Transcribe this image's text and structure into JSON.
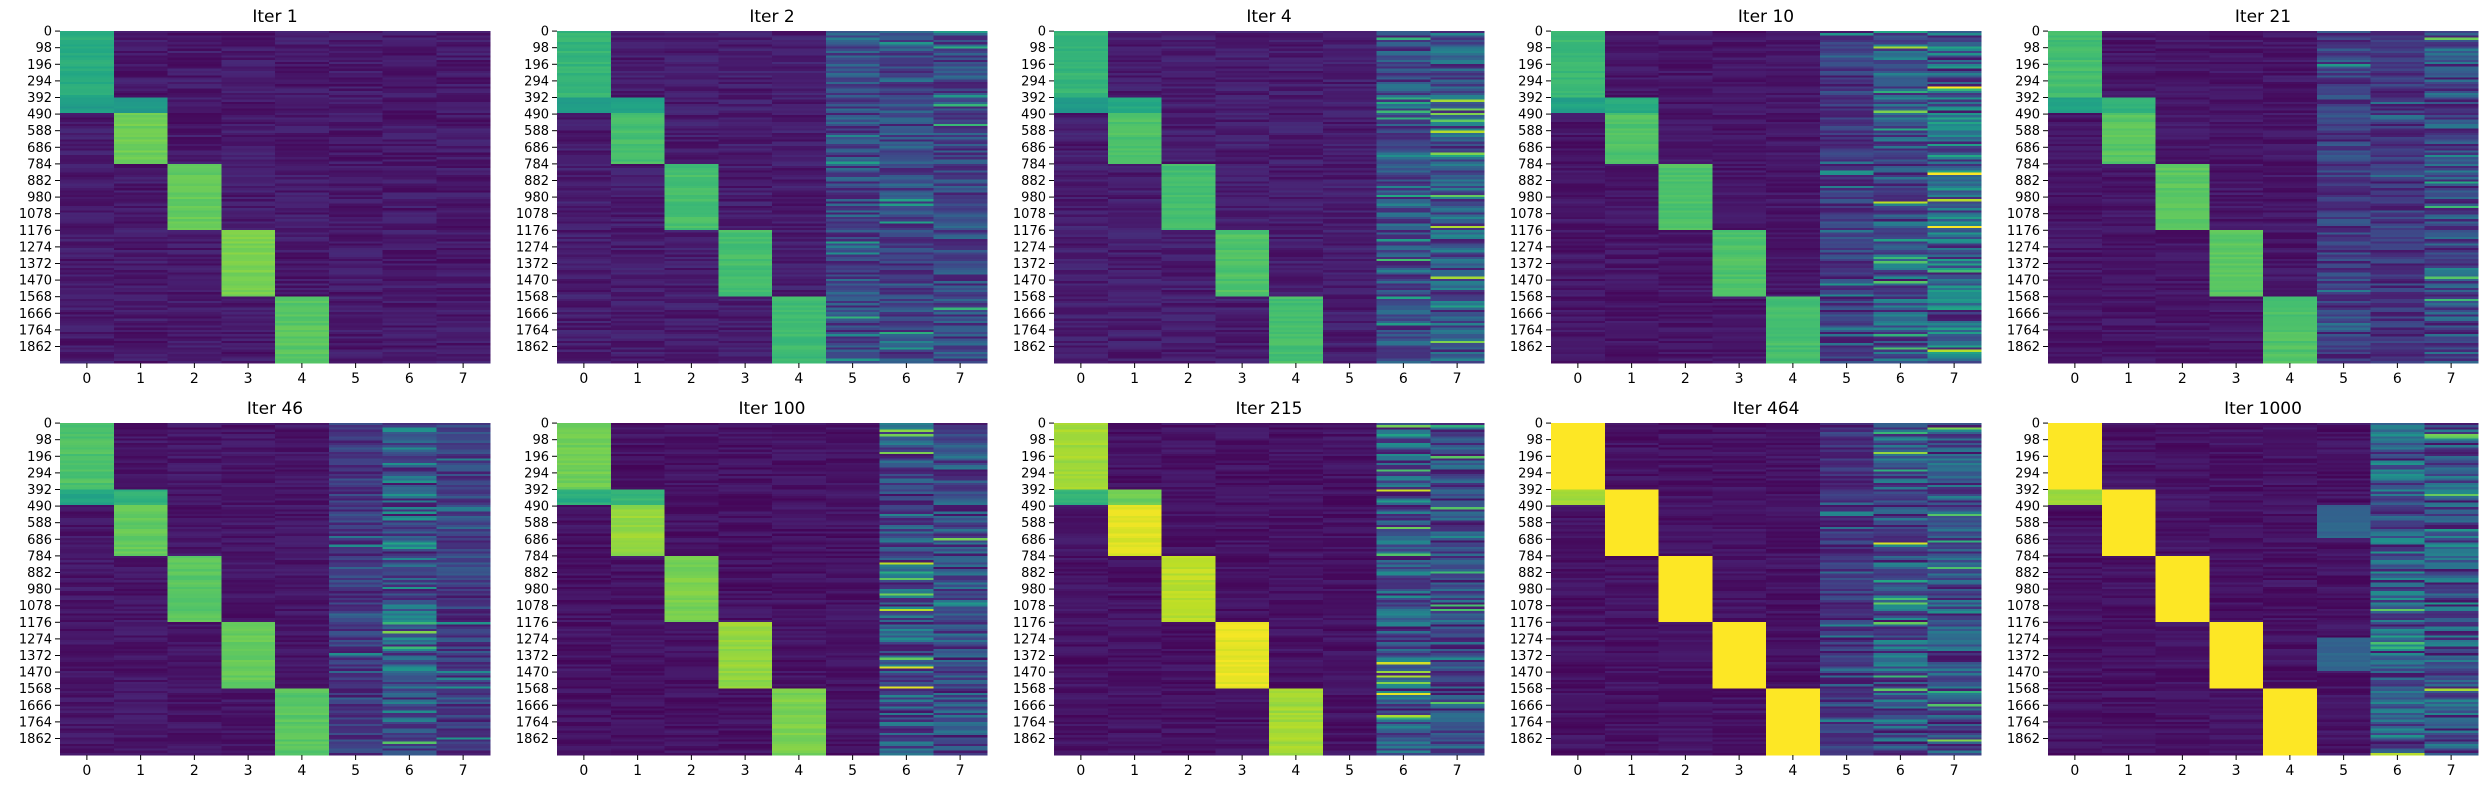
{
  "chart_data": {
    "type": "heatmap",
    "grid": false,
    "colormap": "viridis",
    "colorbar": false,
    "n_rows": 1960,
    "y_tick_labels": [
      "0",
      "98",
      "196",
      "294",
      "392",
      "490",
      "588",
      "686",
      "784",
      "882",
      "980",
      "1078",
      "1176",
      "1274",
      "1372",
      "1470",
      "1568",
      "1666",
      "1764",
      "1862"
    ],
    "x_tick_labels": [
      "0",
      "1",
      "2",
      "3",
      "4",
      "5",
      "6",
      "7"
    ],
    "row_blocks": [
      {
        "name": "c0",
        "rows": [
          0,
          392
        ]
      },
      {
        "name": "c0b",
        "rows": [
          392,
          490
        ]
      },
      {
        "name": "c1",
        "rows": [
          490,
          784
        ]
      },
      {
        "name": "c2",
        "rows": [
          784,
          1176
        ]
      },
      {
        "name": "c3",
        "rows": [
          1176,
          1568
        ]
      },
      {
        "name": "c4",
        "rows": [
          1568,
          1960
        ]
      }
    ],
    "panels": [
      {
        "title": "Iter 1",
        "background": 0.07,
        "noise": 0.1,
        "blocks": [
          [
            0,
            392,
            0,
            0.62
          ],
          [
            392,
            490,
            0,
            0.55
          ],
          [
            392,
            490,
            1,
            0.55
          ],
          [
            490,
            784,
            1,
            0.78
          ],
          [
            784,
            1176,
            2,
            0.76
          ],
          [
            1176,
            1568,
            3,
            0.8
          ],
          [
            1568,
            1960,
            4,
            0.74
          ]
        ],
        "noisy_columns": []
      },
      {
        "title": "Iter 2",
        "background": 0.08,
        "noise": 0.1,
        "blocks": [
          [
            0,
            392,
            0,
            0.66
          ],
          [
            392,
            490,
            0,
            0.55
          ],
          [
            392,
            490,
            1,
            0.58
          ],
          [
            490,
            784,
            1,
            0.7
          ],
          [
            784,
            1176,
            2,
            0.7
          ],
          [
            1176,
            1568,
            3,
            0.7
          ],
          [
            1568,
            1960,
            4,
            0.68
          ]
        ],
        "noisy_columns": [
          [
            5,
            0.22
          ],
          [
            6,
            0.22
          ],
          [
            7,
            0.22
          ]
        ]
      },
      {
        "title": "Iter 4",
        "background": 0.08,
        "noise": 0.1,
        "blocks": [
          [
            0,
            392,
            0,
            0.66
          ],
          [
            392,
            490,
            0,
            0.55
          ],
          [
            392,
            490,
            1,
            0.6
          ],
          [
            490,
            784,
            1,
            0.72
          ],
          [
            784,
            1176,
            2,
            0.7
          ],
          [
            1176,
            1568,
            3,
            0.72
          ],
          [
            1568,
            1960,
            4,
            0.7
          ]
        ],
        "noisy_columns": [
          [
            6,
            0.24
          ],
          [
            7,
            0.3
          ]
        ]
      },
      {
        "title": "Iter 10",
        "background": 0.06,
        "noise": 0.08,
        "blocks": [
          [
            0,
            392,
            0,
            0.68
          ],
          [
            392,
            490,
            0,
            0.58
          ],
          [
            392,
            490,
            1,
            0.62
          ],
          [
            490,
            784,
            1,
            0.72
          ],
          [
            784,
            1176,
            2,
            0.72
          ],
          [
            1176,
            1568,
            3,
            0.72
          ],
          [
            1568,
            1960,
            4,
            0.7
          ]
        ],
        "noisy_columns": [
          [
            5,
            0.18
          ],
          [
            6,
            0.32
          ],
          [
            7,
            0.42
          ]
        ]
      },
      {
        "title": "Iter 21",
        "background": 0.06,
        "noise": 0.08,
        "blocks": [
          [
            0,
            392,
            0,
            0.7
          ],
          [
            392,
            490,
            0,
            0.58
          ],
          [
            392,
            490,
            1,
            0.64
          ],
          [
            490,
            784,
            1,
            0.74
          ],
          [
            784,
            1176,
            2,
            0.74
          ],
          [
            1176,
            1568,
            3,
            0.74
          ],
          [
            1568,
            1960,
            4,
            0.72
          ]
        ],
        "noisy_columns": [
          [
            5,
            0.18
          ],
          [
            6,
            0.14
          ],
          [
            7,
            0.28
          ]
        ]
      },
      {
        "title": "Iter 46",
        "background": 0.06,
        "noise": 0.08,
        "blocks": [
          [
            0,
            392,
            0,
            0.72
          ],
          [
            392,
            490,
            0,
            0.6
          ],
          [
            392,
            490,
            1,
            0.64
          ],
          [
            490,
            784,
            1,
            0.76
          ],
          [
            784,
            1176,
            2,
            0.74
          ],
          [
            1176,
            1568,
            3,
            0.76
          ],
          [
            1568,
            1960,
            4,
            0.74
          ]
        ],
        "noisy_columns": [
          [
            5,
            0.16
          ],
          [
            6,
            0.36
          ],
          [
            7,
            0.18
          ]
        ]
      },
      {
        "title": "Iter 100",
        "background": 0.05,
        "noise": 0.08,
        "blocks": [
          [
            0,
            392,
            0,
            0.78
          ],
          [
            392,
            490,
            0,
            0.62
          ],
          [
            392,
            490,
            1,
            0.66
          ],
          [
            490,
            784,
            1,
            0.84
          ],
          [
            784,
            1176,
            2,
            0.8
          ],
          [
            1176,
            1568,
            3,
            0.84
          ],
          [
            1568,
            1960,
            4,
            0.8
          ]
        ],
        "noisy_columns": [
          [
            6,
            0.34
          ],
          [
            7,
            0.28
          ]
        ]
      },
      {
        "title": "Iter 215",
        "background": 0.05,
        "noise": 0.08,
        "blocks": [
          [
            0,
            392,
            0,
            0.86
          ],
          [
            392,
            490,
            0,
            0.66
          ],
          [
            392,
            490,
            1,
            0.78
          ],
          [
            490,
            784,
            1,
            0.95
          ],
          [
            784,
            1176,
            2,
            0.9
          ],
          [
            1176,
            1568,
            3,
            0.96
          ],
          [
            1568,
            1960,
            4,
            0.86
          ]
        ],
        "noisy_columns": [
          [
            6,
            0.34
          ],
          [
            7,
            0.26
          ]
        ]
      },
      {
        "title": "Iter 464",
        "background": 0.05,
        "noise": 0.08,
        "blocks": [
          [
            0,
            392,
            0,
            1.0
          ],
          [
            392,
            490,
            0,
            0.85
          ],
          [
            392,
            490,
            1,
            1.0
          ],
          [
            490,
            784,
            1,
            1.0
          ],
          [
            784,
            1176,
            2,
            1.0
          ],
          [
            1176,
            1568,
            3,
            1.0
          ],
          [
            1568,
            1960,
            4,
            1.0
          ]
        ],
        "noisy_columns": [
          [
            5,
            0.16
          ],
          [
            6,
            0.34
          ],
          [
            7,
            0.3
          ]
        ]
      },
      {
        "title": "Iter 1000",
        "background": 0.05,
        "noise": 0.08,
        "blocks": [
          [
            0,
            392,
            0,
            1.0
          ],
          [
            392,
            490,
            0,
            0.85
          ],
          [
            392,
            490,
            1,
            1.0
          ],
          [
            490,
            784,
            1,
            1.0
          ],
          [
            784,
            1176,
            2,
            1.0
          ],
          [
            1176,
            1568,
            3,
            1.0
          ],
          [
            1568,
            1960,
            4,
            1.0
          ],
          [
            490,
            686,
            5,
            0.32
          ],
          [
            1274,
            1470,
            5,
            0.32
          ]
        ],
        "noisy_columns": [
          [
            6,
            0.36
          ],
          [
            7,
            0.32
          ]
        ]
      }
    ]
  }
}
